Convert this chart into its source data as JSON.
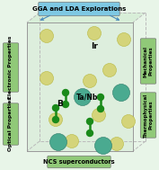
{
  "title_text": "GGA and LDA Explorations",
  "bottom_text": "NCS superconductors",
  "left_top_text": "Electronic Properties",
  "left_bottom_text": "Optical Properties",
  "right_top_text": "Mechanical\nProperties",
  "right_bottom_text": "Thermophysical\nProperties",
  "label_ir": "Ir",
  "label_b": "B",
  "label_tanb": "Ta/Nb",
  "box_color_top": "#7ec8e3",
  "box_color_sides": "#90c978",
  "color_ir": "#d4d47a",
  "color_tanb": "#4aaa90",
  "color_b": "#1a8a1a",
  "bg_color": "#e8f5e8",
  "box_edge": "#aaaaaa",
  "arrow_color": "#4488bb",
  "crystal_bg": "#ddeedd"
}
